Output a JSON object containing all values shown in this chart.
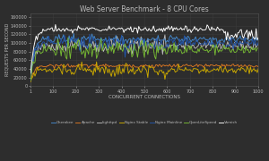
{
  "title": "Web Server Benchmark - 8 CPU Cores",
  "xlabel": "CONCURRENT CONNECTIONS",
  "ylabel": "REQUESTS PER SECOND",
  "background_color": "#2d2d2d",
  "grid_color": "#3d3d3d",
  "text_color": "#bbbbbb",
  "x_ticks": [
    1,
    100,
    200,
    300,
    400,
    500,
    600,
    700,
    800,
    900,
    1000
  ],
  "y_ticks": [
    0,
    20000,
    40000,
    60000,
    80000,
    100000,
    120000,
    140000,
    160000
  ],
  "y_tick_labels": [
    "0",
    "20000",
    "40000",
    "60000",
    "80000",
    "100000",
    "120000",
    "140000",
    "160000"
  ],
  "ylim": [
    0,
    168000
  ],
  "xlim": [
    1,
    1000
  ],
  "series_colors": {
    "Cherokee": "#4488cc",
    "Apache": "#dd7722",
    "Lighttpd": "#bbbbbb",
    "Nginx Stable": "#ccaa00",
    "Nginx Mainline": "#2255aa",
    "OpenLiteSpeed": "#77bb33",
    "Varnish": "#ffffff"
  },
  "series_plateaus": {
    "Cherokee": 108000,
    "Apache": 47000,
    "Lighttpd": 93000,
    "Nginx Stable": 37000,
    "Nginx Mainline": 100000,
    "OpenLiteSpeed": 85000,
    "Varnish": 132000
  },
  "series_starts": {
    "Cherokee": 18000,
    "Apache": 10000,
    "Lighttpd": 16000,
    "Nginx Stable": 10000,
    "Nginx Mainline": 15000,
    "OpenLiteSpeed": 14000,
    "Varnish": 19000
  }
}
